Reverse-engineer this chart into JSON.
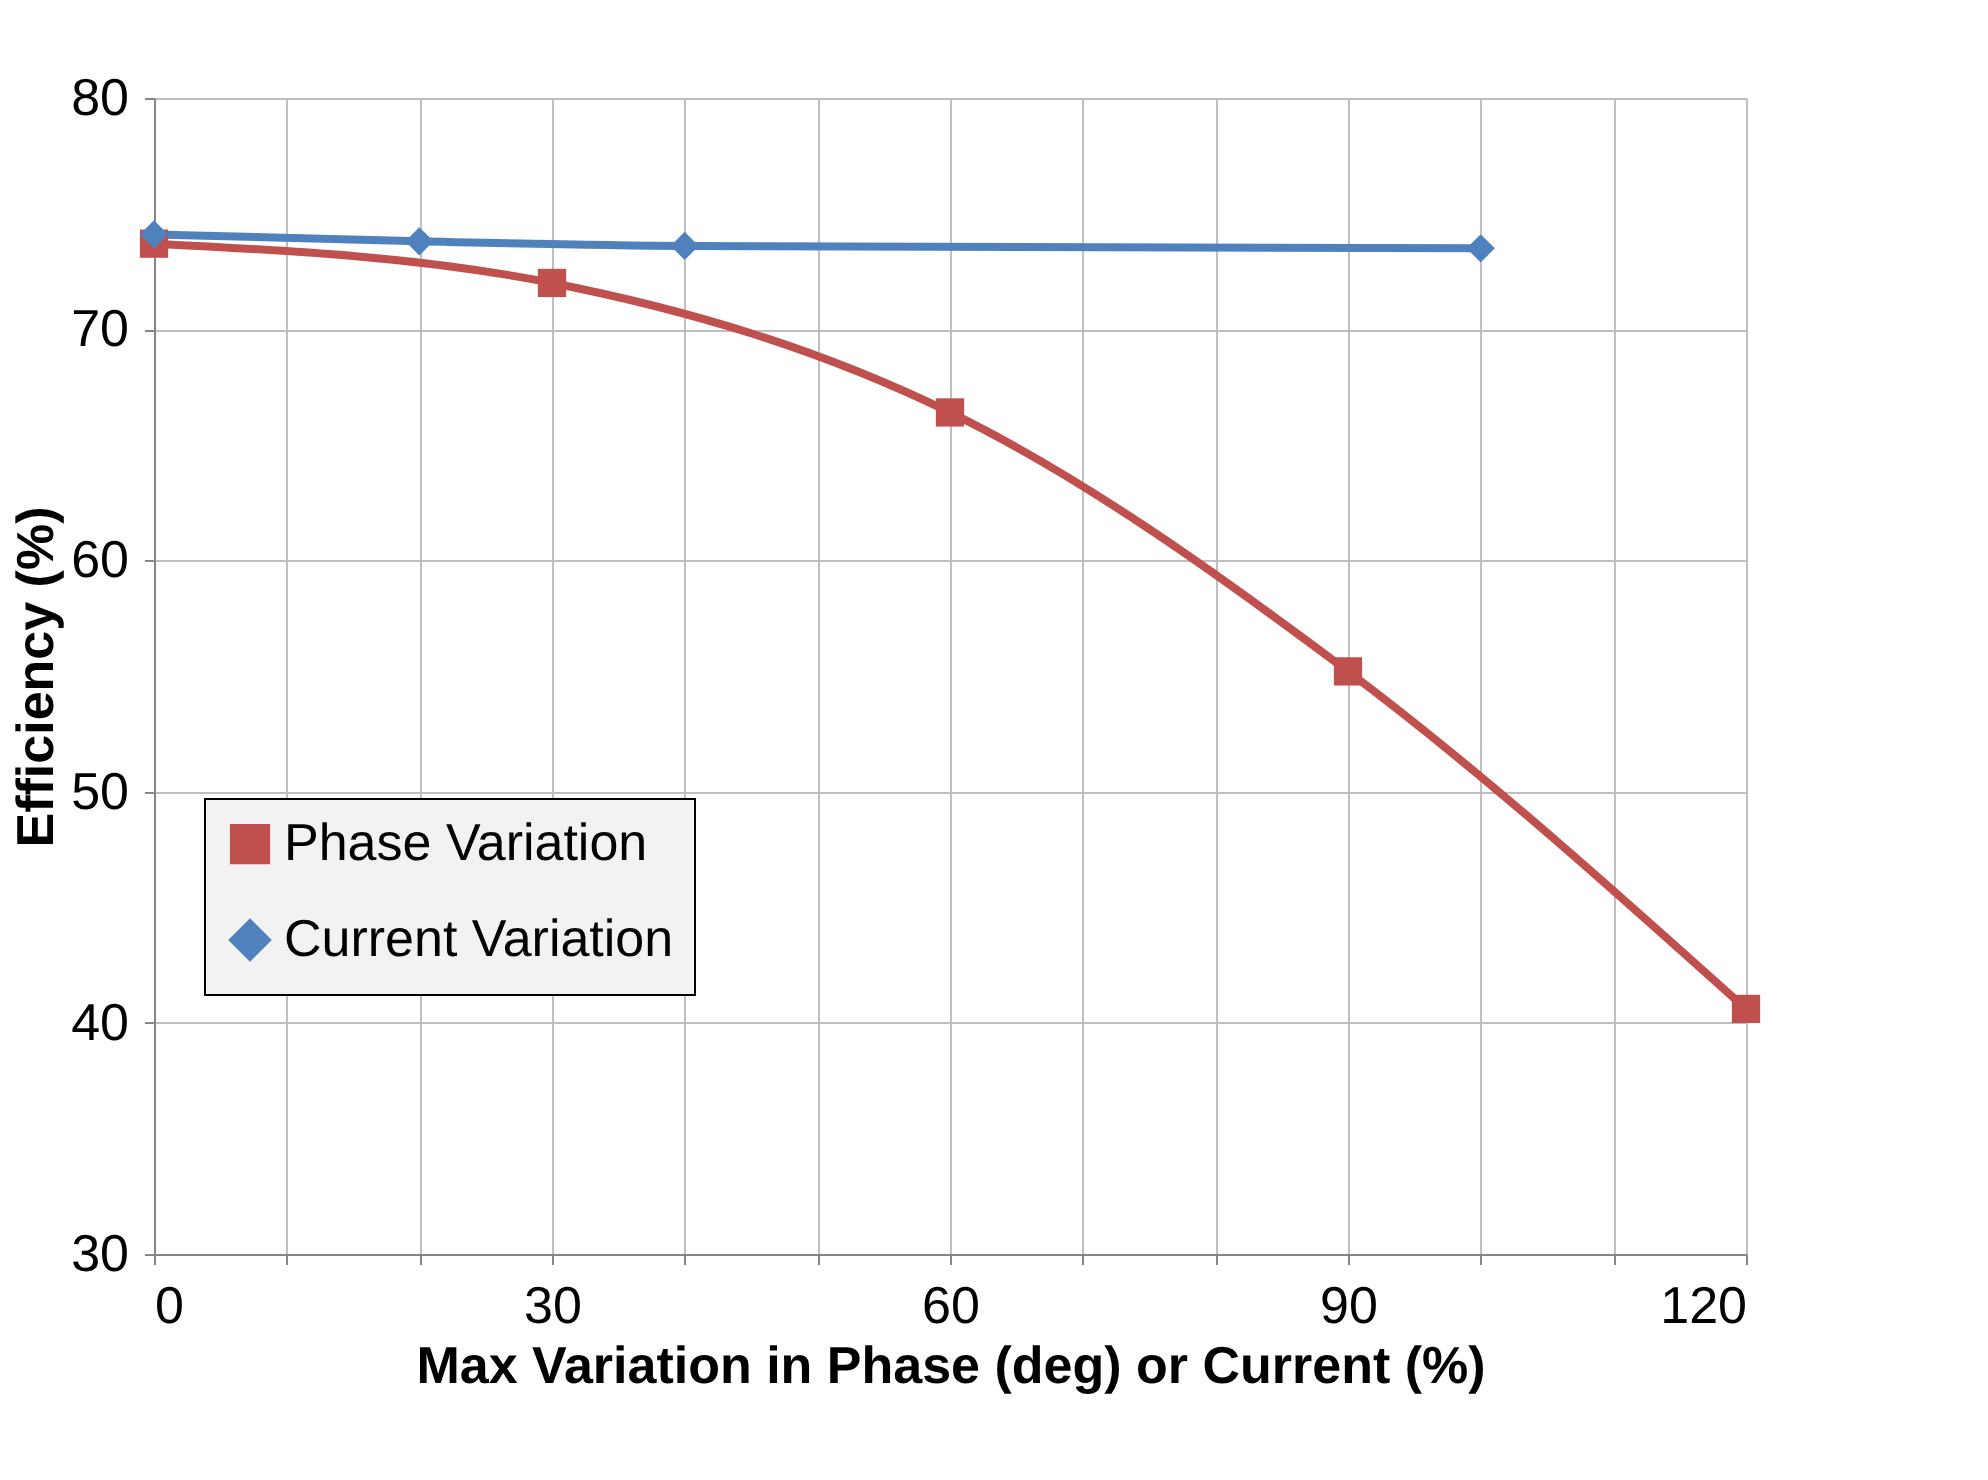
{
  "chart_data": {
    "type": "line",
    "xlabel": "Max Variation in Phase (deg) or Current (%)",
    "ylabel": "Efficiency (%)",
    "xlim": [
      0,
      120
    ],
    "ylim": [
      30,
      80
    ],
    "xticks": [
      0,
      {
        "value": 10,
        "label": null
      },
      {
        "value": 20,
        "label": null
      },
      30,
      {
        "value": 40,
        "label": null
      },
      {
        "value": 50,
        "label": null
      },
      60,
      {
        "value": 70,
        "label": null
      },
      {
        "value": 80,
        "label": null
      },
      90,
      {
        "value": 100,
        "label": null
      },
      {
        "value": 110,
        "label": null
      },
      120
    ],
    "yticks": [
      30,
      40,
      50,
      60,
      70,
      80
    ],
    "grid": true,
    "legend": "left",
    "line_style": "solid",
    "series": [
      {
        "name": "Phase Variation",
        "color": "#c0504d",
        "marker": "square",
        "x": [
          0,
          30,
          60,
          90,
          120
        ],
        "values": [
          73.7,
          72.0,
          66.4,
          55.2,
          40.6
        ]
      },
      {
        "name": "Current Variation",
        "color": "#4f81bd",
        "marker": "diamond",
        "x": [
          0,
          20,
          40,
          100
        ],
        "values": [
          74.1,
          73.8,
          73.6,
          73.5
        ]
      }
    ]
  }
}
